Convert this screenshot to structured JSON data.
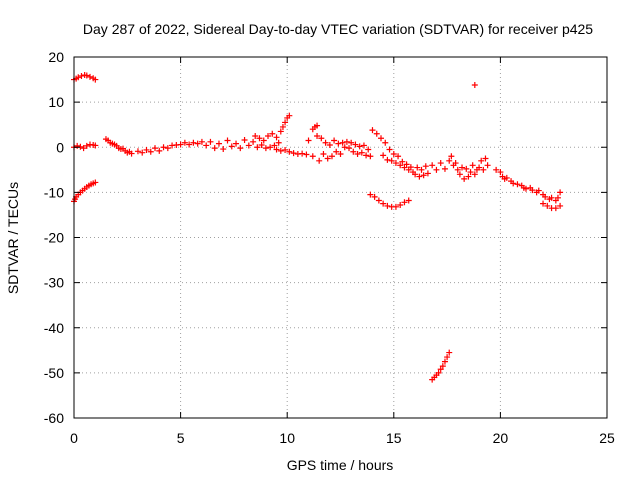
{
  "chart_data": {
    "type": "scatter",
    "title": "Day 287 of 2022, Sidereal Day-to-day VTEC variation (SDTVAR) for receiver p425",
    "xlabel": "GPS time / hours",
    "ylabel": "SDTVAR / TECUs",
    "xlim": [
      0,
      25
    ],
    "ylim": [
      -60,
      20
    ],
    "xticks": [
      0,
      5,
      10,
      15,
      20,
      25
    ],
    "yticks": [
      -60,
      -50,
      -40,
      -30,
      -20,
      -10,
      0,
      10,
      20
    ],
    "grid": true,
    "marker": "+",
    "color": "#ff0000",
    "series": [
      {
        "name": "SDTVAR p425",
        "points": [
          [
            0.0,
            15.0
          ],
          [
            0.1,
            15.2
          ],
          [
            0.2,
            15.5
          ],
          [
            0.35,
            15.8
          ],
          [
            0.5,
            16.0
          ],
          [
            0.6,
            15.9
          ],
          [
            0.75,
            15.6
          ],
          [
            0.9,
            15.3
          ],
          [
            1.0,
            15.0
          ],
          [
            0.0,
            0.0
          ],
          [
            0.15,
            0.3
          ],
          [
            0.3,
            0.1
          ],
          [
            0.45,
            -0.2
          ],
          [
            0.6,
            0.3
          ],
          [
            0.75,
            0.6
          ],
          [
            0.9,
            0.5
          ],
          [
            1.0,
            0.4
          ],
          [
            0.0,
            -12.0
          ],
          [
            0.05,
            -11.5
          ],
          [
            0.1,
            -11.0
          ],
          [
            0.2,
            -10.5
          ],
          [
            0.3,
            -10.0
          ],
          [
            0.4,
            -9.6
          ],
          [
            0.5,
            -9.2
          ],
          [
            0.6,
            -8.8
          ],
          [
            0.7,
            -8.5
          ],
          [
            0.8,
            -8.2
          ],
          [
            0.9,
            -8.0
          ],
          [
            1.0,
            -7.8
          ],
          [
            1.5,
            1.8
          ],
          [
            1.6,
            1.5
          ],
          [
            1.7,
            1.0
          ],
          [
            1.8,
            0.8
          ],
          [
            1.9,
            0.6
          ],
          [
            2.0,
            0.3
          ],
          [
            2.1,
            -0.2
          ],
          [
            2.2,
            -0.4
          ],
          [
            2.3,
            -0.3
          ],
          [
            2.4,
            -0.8
          ],
          [
            2.5,
            -1.2
          ],
          [
            2.6,
            -1.0
          ],
          [
            2.7,
            -1.4
          ],
          [
            3.0,
            -0.9
          ],
          [
            3.2,
            -1.2
          ],
          [
            3.4,
            -0.6
          ],
          [
            3.6,
            -1.0
          ],
          [
            3.8,
            -0.2
          ],
          [
            4.0,
            -0.8
          ],
          [
            4.2,
            0.0
          ],
          [
            4.4,
            -0.2
          ],
          [
            4.6,
            0.4
          ],
          [
            4.8,
            0.5
          ],
          [
            5.0,
            0.6
          ],
          [
            5.2,
            1.0
          ],
          [
            5.4,
            0.6
          ],
          [
            5.6,
            1.0
          ],
          [
            5.8,
            0.8
          ],
          [
            6.0,
            1.2
          ],
          [
            6.2,
            0.4
          ],
          [
            6.4,
            1.2
          ],
          [
            6.6,
            -0.2
          ],
          [
            6.8,
            0.8
          ],
          [
            7.0,
            -0.4
          ],
          [
            7.2,
            1.5
          ],
          [
            7.4,
            0.2
          ],
          [
            7.6,
            0.8
          ],
          [
            7.8,
            -0.2
          ],
          [
            8.0,
            1.6
          ],
          [
            8.2,
            0.4
          ],
          [
            8.4,
            1.2
          ],
          [
            8.5,
            2.5
          ],
          [
            8.6,
            0.0
          ],
          [
            8.7,
            2.0
          ],
          [
            8.8,
            0.5
          ],
          [
            8.9,
            1.5
          ],
          [
            9.0,
            -0.2
          ],
          [
            9.1,
            2.5
          ],
          [
            9.2,
            0.0
          ],
          [
            9.3,
            3.0
          ],
          [
            9.4,
            0.4
          ],
          [
            9.5,
            2.2
          ],
          [
            9.6,
            1.0
          ],
          [
            9.7,
            3.5
          ],
          [
            9.8,
            4.5
          ],
          [
            9.9,
            5.5
          ],
          [
            10.0,
            6.5
          ],
          [
            10.1,
            7.0
          ],
          [
            9.5,
            -0.5
          ],
          [
            9.7,
            -0.8
          ],
          [
            9.9,
            -0.6
          ],
          [
            10.1,
            -1.0
          ],
          [
            10.3,
            -1.3
          ],
          [
            10.5,
            -1.5
          ],
          [
            10.7,
            -1.4
          ],
          [
            10.9,
            -1.6
          ],
          [
            11.2,
            4.0
          ],
          [
            11.3,
            4.5
          ],
          [
            11.4,
            4.8
          ],
          [
            11.0,
            1.5
          ],
          [
            11.2,
            -2.0
          ],
          [
            11.4,
            2.5
          ],
          [
            11.5,
            -3.0
          ],
          [
            11.6,
            2.0
          ],
          [
            11.7,
            -1.5
          ],
          [
            11.8,
            1.0
          ],
          [
            11.9,
            -2.5
          ],
          [
            12.0,
            0.5
          ],
          [
            12.1,
            -2.0
          ],
          [
            12.2,
            1.5
          ],
          [
            12.3,
            -1.0
          ],
          [
            12.4,
            0.8
          ],
          [
            12.5,
            -1.5
          ],
          [
            12.6,
            1.0
          ],
          [
            12.7,
            0.0
          ],
          [
            12.8,
            1.2
          ],
          [
            12.9,
            -0.2
          ],
          [
            13.0,
            1.0
          ],
          [
            13.1,
            -1.0
          ],
          [
            13.2,
            0.6
          ],
          [
            13.3,
            -1.5
          ],
          [
            13.4,
            0.2
          ],
          [
            13.5,
            -1.2
          ],
          [
            13.6,
            0.4
          ],
          [
            13.7,
            -1.8
          ],
          [
            13.8,
            -0.5
          ],
          [
            13.9,
            -2.0
          ],
          [
            14.0,
            3.8
          ],
          [
            14.2,
            3.0
          ],
          [
            14.4,
            2.0
          ],
          [
            14.5,
            -1.8
          ],
          [
            14.6,
            1.0
          ],
          [
            14.7,
            -2.8
          ],
          [
            14.8,
            -0.5
          ],
          [
            14.9,
            -3.0
          ],
          [
            15.0,
            -1.5
          ],
          [
            15.1,
            -3.5
          ],
          [
            15.2,
            -2.0
          ],
          [
            15.3,
            -4.0
          ],
          [
            15.4,
            -3.2
          ],
          [
            15.5,
            -4.5
          ],
          [
            15.6,
            -3.8
          ],
          [
            15.7,
            -5.0
          ],
          [
            15.8,
            -4.4
          ],
          [
            15.9,
            -5.5
          ],
          [
            13.9,
            -10.5
          ],
          [
            14.1,
            -11.0
          ],
          [
            14.3,
            -11.8
          ],
          [
            14.5,
            -12.5
          ],
          [
            14.7,
            -13.0
          ],
          [
            14.9,
            -13.2
          ],
          [
            15.1,
            -13.2
          ],
          [
            15.3,
            -12.8
          ],
          [
            15.5,
            -12.2
          ],
          [
            15.7,
            -11.8
          ],
          [
            16.0,
            -6.0
          ],
          [
            16.1,
            -4.5
          ],
          [
            16.2,
            -6.5
          ],
          [
            16.3,
            -5.0
          ],
          [
            16.4,
            -6.2
          ],
          [
            16.5,
            -4.2
          ],
          [
            16.6,
            -5.8
          ],
          [
            16.8,
            -4.0
          ],
          [
            17.0,
            -5.0
          ],
          [
            17.2,
            -3.5
          ],
          [
            17.4,
            -4.8
          ],
          [
            17.6,
            -3.0
          ],
          [
            17.7,
            -2.0
          ],
          [
            17.8,
            -4.0
          ],
          [
            17.9,
            -3.5
          ],
          [
            18.0,
            -5.0
          ],
          [
            18.1,
            -6.0
          ],
          [
            18.2,
            -4.5
          ],
          [
            18.3,
            -7.0
          ],
          [
            18.4,
            -4.8
          ],
          [
            18.5,
            -6.5
          ],
          [
            18.6,
            -5.5
          ],
          [
            18.7,
            -4.0
          ],
          [
            18.8,
            -6.0
          ],
          [
            18.9,
            -5.0
          ],
          [
            19.0,
            -4.5
          ],
          [
            19.1,
            -3.0
          ],
          [
            19.2,
            -5.0
          ],
          [
            19.3,
            -2.5
          ],
          [
            19.4,
            -4.0
          ],
          [
            18.8,
            13.8
          ],
          [
            16.8,
            -51.5
          ],
          [
            16.9,
            -51.0
          ],
          [
            17.0,
            -50.5
          ],
          [
            17.1,
            -50.0
          ],
          [
            17.2,
            -49.2
          ],
          [
            17.3,
            -48.5
          ],
          [
            17.4,
            -47.5
          ],
          [
            17.5,
            -46.5
          ],
          [
            17.6,
            -45.5
          ],
          [
            19.8,
            -5.0
          ],
          [
            20.0,
            -5.5
          ],
          [
            20.1,
            -6.5
          ],
          [
            20.2,
            -7.0
          ],
          [
            20.3,
            -6.8
          ],
          [
            20.5,
            -7.5
          ],
          [
            20.6,
            -8.0
          ],
          [
            20.8,
            -8.2
          ],
          [
            21.0,
            -8.5
          ],
          [
            21.1,
            -9.0
          ],
          [
            21.2,
            -9.2
          ],
          [
            21.4,
            -9.0
          ],
          [
            21.5,
            -9.5
          ],
          [
            21.7,
            -10.0
          ],
          [
            21.8,
            -9.6
          ],
          [
            22.0,
            -10.5
          ],
          [
            22.1,
            -11.0
          ],
          [
            22.3,
            -11.5
          ],
          [
            22.4,
            -11.2
          ],
          [
            22.6,
            -11.8
          ],
          [
            22.7,
            -11.2
          ],
          [
            22.8,
            -10.0
          ],
          [
            22.0,
            -12.5
          ],
          [
            22.2,
            -13.0
          ],
          [
            22.4,
            -13.5
          ],
          [
            22.6,
            -13.5
          ],
          [
            22.8,
            -13.0
          ]
        ]
      }
    ]
  }
}
